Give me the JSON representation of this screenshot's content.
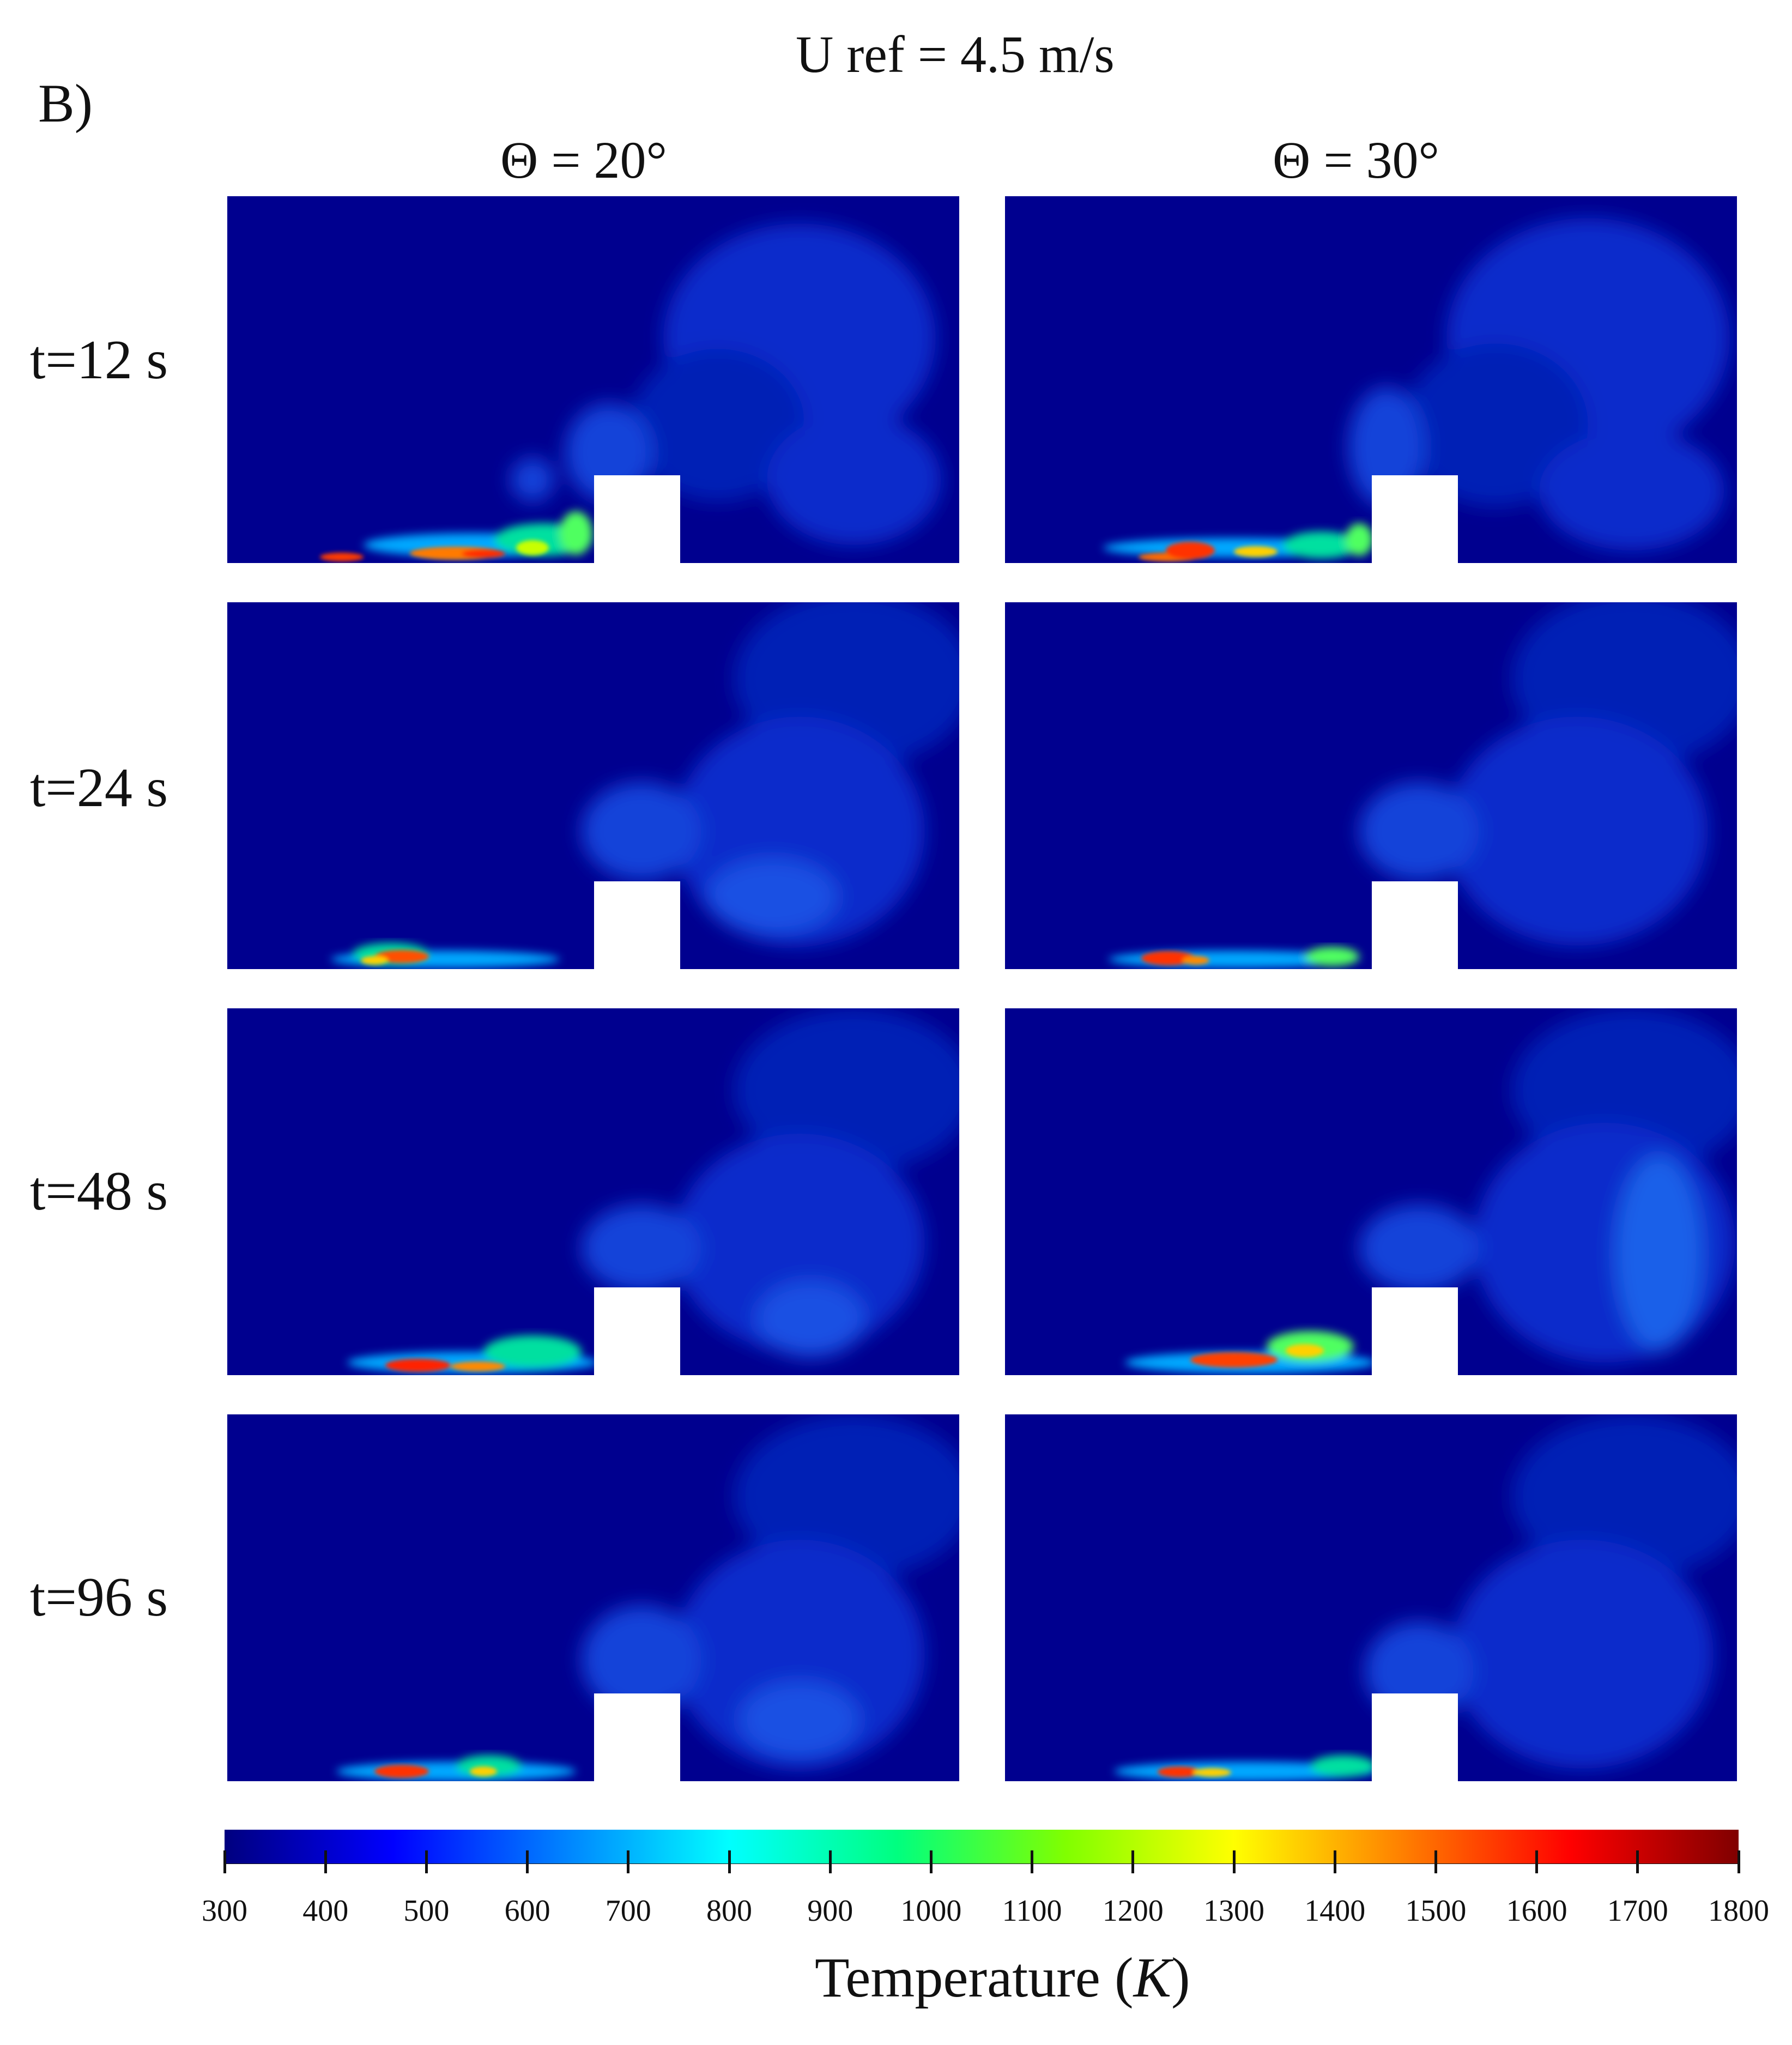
{
  "figure": {
    "panel_label": "B)",
    "title": "U ref = 4.5 m/s",
    "columns": [
      "Θ = 20°",
      "Θ = 30°"
    ],
    "rows": [
      "t=12 s",
      "t=24 s",
      "t=48 s",
      "t=96 s"
    ]
  },
  "colorbar": {
    "title": "Temperature",
    "unit": "K",
    "ticks": [
      "300",
      "400",
      "500",
      "600",
      "700",
      "800",
      "900",
      "1000",
      "1100",
      "1200",
      "1300",
      "1400",
      "1500",
      "1600",
      "1700",
      "1800"
    ],
    "colors": [
      "#00007f",
      "#0000ff",
      "#0080ff",
      "#00ffff",
      "#00ff7f",
      "#80ff00",
      "#ffff00",
      "#ff8000",
      "#ff0000",
      "#800000"
    ]
  }
}
